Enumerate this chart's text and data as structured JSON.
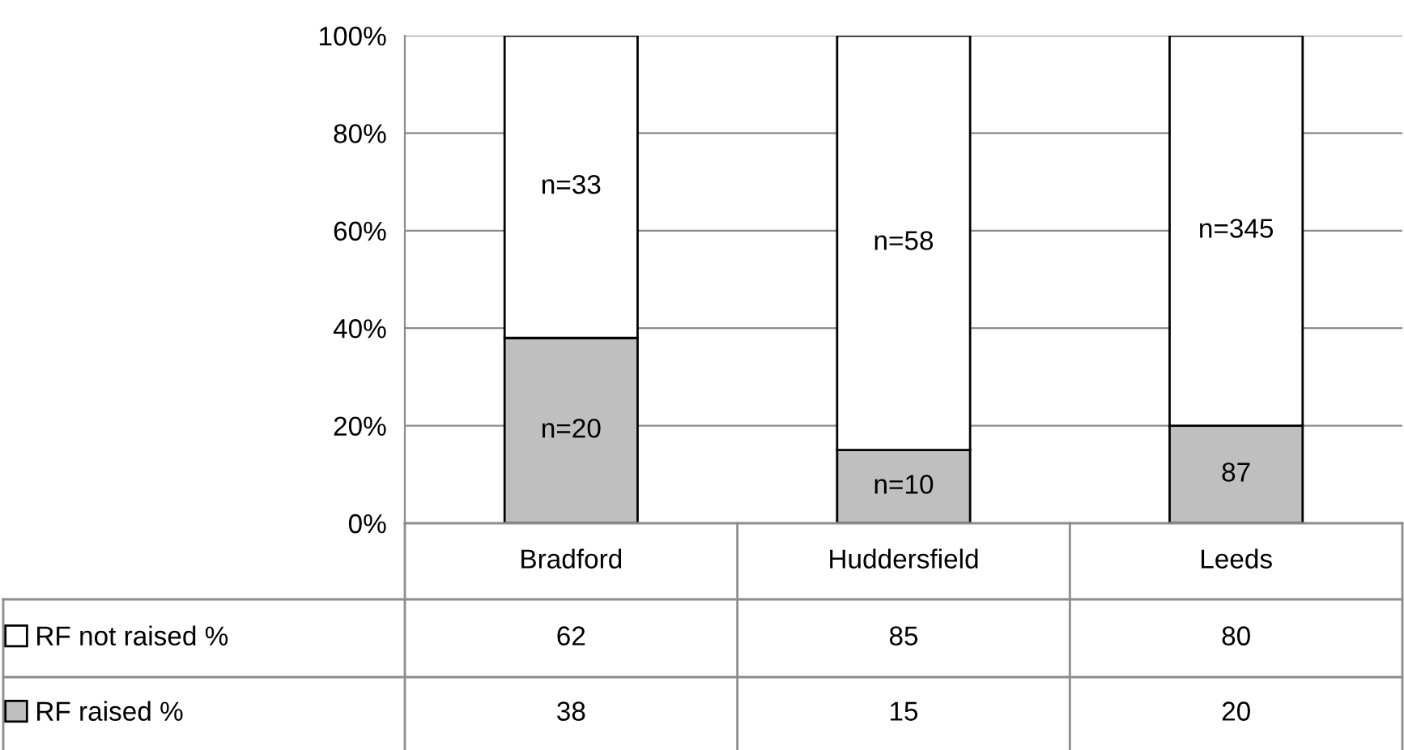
{
  "chart_data": {
    "type": "bar",
    "stacked": true,
    "categories": [
      "Bradford",
      "Huddersfield",
      "Leeds"
    ],
    "series": [
      {
        "name": "RF raised %",
        "color": "#bfbfbf",
        "values": [
          38,
          15,
          20
        ],
        "value_labels": [
          "38",
          "15",
          "20"
        ]
      },
      {
        "name": "RF not raised %",
        "color": "#ffffff",
        "values": [
          62,
          85,
          80
        ],
        "value_labels": [
          "62",
          "85",
          "80"
        ]
      }
    ],
    "annotations": [
      "n=20",
      "n=10",
      "87",
      "n=33",
      "n=58",
      "n=345"
    ],
    "data_labels": true,
    "ylim": [
      0,
      100
    ],
    "yticks": [
      {
        "value": 0,
        "label": "0%"
      },
      {
        "value": 20,
        "label": "20%"
      },
      {
        "value": 40,
        "label": "40%"
      },
      {
        "value": 60,
        "label": "60%"
      },
      {
        "value": 80,
        "label": "80%"
      },
      {
        "value": 100,
        "label": "100%"
      }
    ],
    "grid": "y",
    "legend": "bottom"
  }
}
